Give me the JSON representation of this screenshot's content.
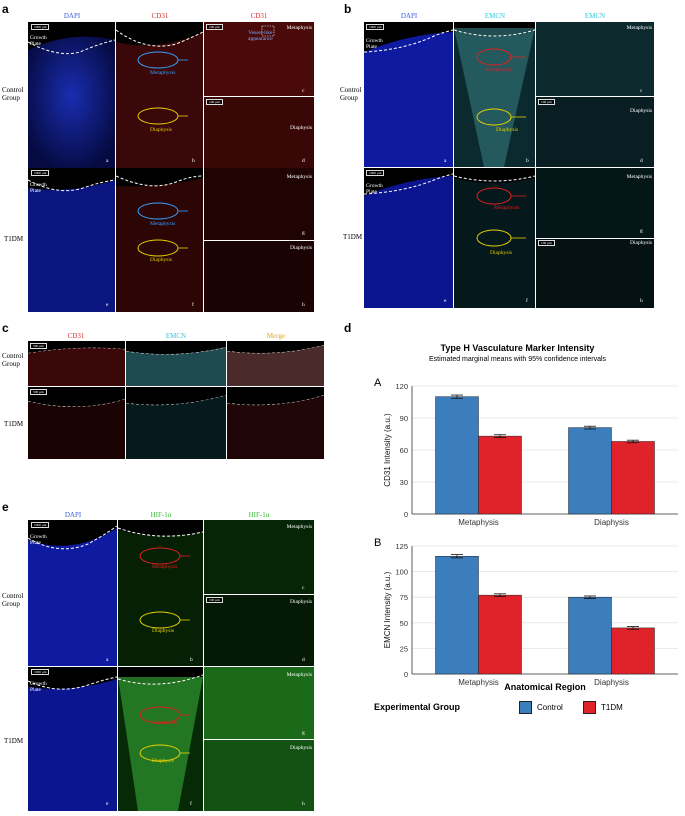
{
  "panel_a": {
    "label": "a",
    "columns": [
      "DAPI",
      "CD31",
      "CD31"
    ],
    "rows": [
      "Control\nGroup",
      "T1DM"
    ],
    "growth_plate": "Growth\nPlate",
    "metaphysis": "Metaphysis",
    "diaphysis": "Diaphysis",
    "vessel": "Vessel-like\nappearance",
    "letters": [
      "a",
      "b",
      "c",
      "d",
      "e",
      "f",
      "g",
      "h"
    ],
    "scale": "1000 μm",
    "scale_small": "100 μm"
  },
  "panel_b": {
    "label": "b",
    "columns": [
      "DAPI",
      "EMCN",
      "EMCN"
    ],
    "rows": [
      "Control\nGroup",
      "T1DM"
    ],
    "growth_plate": "Growth\nPlate",
    "metaphysis": "Metaphysis",
    "diaphysis": "Diaphysis",
    "letters": [
      "a",
      "b",
      "c",
      "d",
      "e",
      "f",
      "g",
      "h"
    ],
    "scale": "1000 μm",
    "scale_small": "100 μm"
  },
  "panel_c": {
    "label": "c",
    "columns": [
      "CD31",
      "EMCN",
      "Merge"
    ],
    "rows": [
      "Control\nGroup",
      "T1DM"
    ],
    "scale": "500 μm"
  },
  "panel_e": {
    "label": "e",
    "columns": [
      "DAPI",
      "HIF-1α",
      "HIF-1α"
    ],
    "rows": [
      "Control\nGroup",
      "T1DM"
    ],
    "growth_plate": "Growth\nPlate",
    "metaphysis": "Metaphysis",
    "diaphysis": "Diaphysis",
    "letters": [
      "a",
      "b",
      "c",
      "d",
      "e",
      "f",
      "g",
      "h"
    ],
    "scale": "1000 μm",
    "scale_small": "100 μm"
  },
  "panel_d": {
    "label": "d",
    "title": "Type H Vasculature Marker Intensity",
    "subtitle": "Estimated marginal means with 95% confidence intervals",
    "xlabel": "Anatomical Region",
    "legend_title": "Experimental Group",
    "colors": {
      "Control": "#3b7dbd",
      "T1DM": "#e0232b"
    }
  },
  "chart_data": [
    {
      "type": "bar",
      "panel": "A",
      "categories": [
        "Metaphysis",
        "Diaphysis"
      ],
      "series": [
        {
          "name": "Control",
          "values": [
            110,
            81
          ],
          "err": [
            1.5,
            1.3
          ]
        },
        {
          "name": "T1DM",
          "values": [
            73,
            68
          ],
          "err": [
            1.3,
            1.2
          ]
        }
      ],
      "ylabel": "CD31 Intensity (a.u.)",
      "ylim": [
        0,
        120
      ],
      "yticks": [
        0,
        30,
        60,
        90,
        120
      ]
    },
    {
      "type": "bar",
      "panel": "B",
      "categories": [
        "Metaphysis",
        "Diaphysis"
      ],
      "series": [
        {
          "name": "Control",
          "values": [
            115,
            75
          ],
          "err": [
            1.6,
            1.2
          ]
        },
        {
          "name": "T1DM",
          "values": [
            77,
            45
          ],
          "err": [
            1.3,
            1.3
          ]
        }
      ],
      "ylabel": "EMCN Intensity (a.u.)",
      "ylim": [
        0,
        125
      ],
      "yticks": [
        0,
        25,
        50,
        75,
        100,
        125
      ]
    }
  ]
}
